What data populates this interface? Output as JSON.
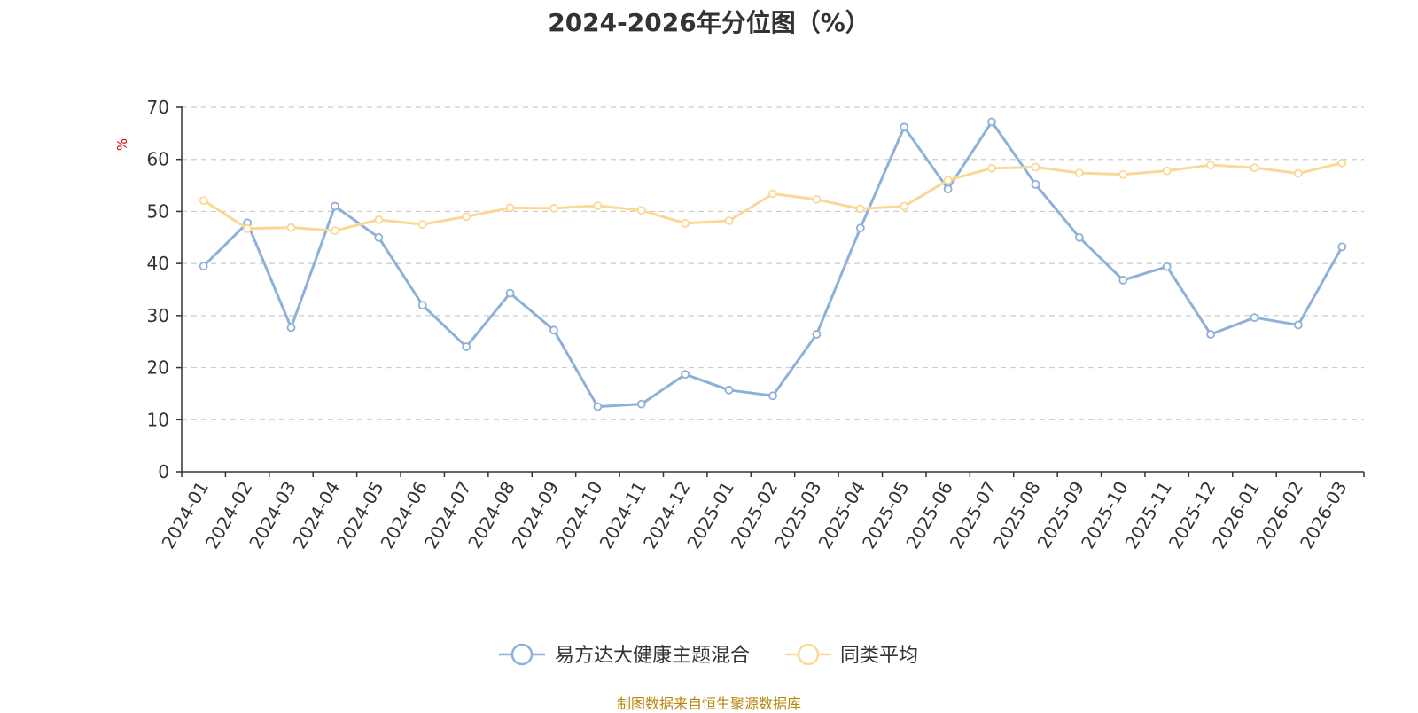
{
  "chart_data": {
    "type": "line",
    "title": "2024-2026年分位图（%）",
    "ylabel": "%",
    "xlabel": "",
    "ylim": [
      0,
      70
    ],
    "yticks": [
      0,
      10,
      20,
      30,
      40,
      50,
      60,
      70
    ],
    "grid": true,
    "legend_position": "bottom",
    "categories": [
      "2024-01",
      "2024-02",
      "2024-03",
      "2024-04",
      "2024-05",
      "2024-06",
      "2024-07",
      "2024-08",
      "2024-09",
      "2024-10",
      "2024-11",
      "2024-12",
      "2025-01",
      "2025-02",
      "2025-03",
      "2025-04",
      "2025-05",
      "2025-06",
      "2025-07",
      "2025-08",
      "2025-09",
      "2025-10",
      "2025-11",
      "2025-12",
      "2026-01",
      "2026-02",
      "2026-03"
    ],
    "series": [
      {
        "name": "易方达大健康主题混合",
        "color": "#8fb0d9",
        "values": [
          39.5,
          47.8,
          27.7,
          51.0,
          45.0,
          32.0,
          24.0,
          34.3,
          27.2,
          12.5,
          13.0,
          18.7,
          15.7,
          14.6,
          26.4,
          46.8,
          66.2,
          54.3,
          67.2,
          55.2,
          45.0,
          36.8,
          39.4,
          26.4,
          29.6,
          28.2,
          43.2
        ]
      },
      {
        "name": "同类平均",
        "color": "#fbd896",
        "values": [
          52.1,
          46.7,
          46.9,
          46.3,
          48.4,
          47.5,
          49.0,
          50.7,
          50.6,
          51.1,
          50.2,
          47.7,
          48.2,
          53.4,
          52.3,
          50.5,
          51.0,
          56.0,
          58.3,
          58.5,
          57.4,
          57.1,
          57.8,
          58.9,
          58.4,
          57.3,
          59.3
        ]
      }
    ]
  },
  "source_note": "制图数据来自恒生聚源数据库"
}
